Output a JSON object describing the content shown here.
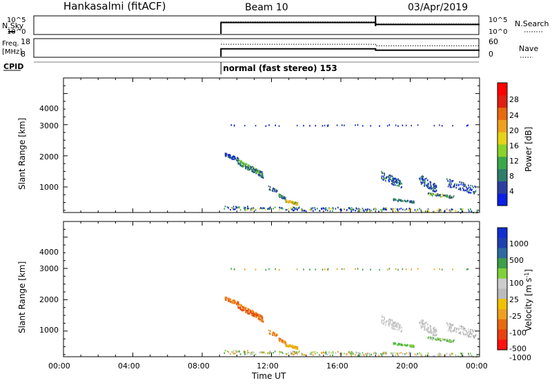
{
  "header": {
    "station": "Hankasalmi (fitACF)",
    "beam": "Beam 10",
    "date": "03/Apr/2019"
  },
  "colors": {
    "power_scale": [
      "#0b1fe6",
      "#2c3fa0",
      "#2e7d6b",
      "#3aa84a",
      "#8bd22a",
      "#e6d21a",
      "#f0a020",
      "#e86a10",
      "#e02010",
      "#ff0000"
    ],
    "velocity_scale": [
      "#ff1010",
      "#e84010",
      "#e86a10",
      "#f0a020",
      "#f0c000",
      "#bbbbbb",
      "#cccccc",
      "#7fd13a",
      "#3e9e4a",
      "#2e6aa0",
      "#2040b0",
      "#1030d0"
    ]
  },
  "chart_data": [
    {
      "type": "line",
      "name": "nsky-nsearch",
      "left_label": "N.Sky",
      "right_label": "N.Search",
      "left_ticks": [
        "10^5",
        "10^0"
      ],
      "right_ticks": [
        "10^5",
        "10^0"
      ],
      "x": [
        "09:05",
        "18:00",
        "18:00",
        "00:00"
      ],
      "y_sky": [
        3.2,
        3.2,
        2.6,
        2.6
      ],
      "y_search": [
        3.4,
        3.4,
        2.8,
        2.8
      ],
      "spike_time": "18:00"
    },
    {
      "type": "line",
      "name": "freq-nave",
      "left_label": "Freq.",
      "left_unit": "[MHz]",
      "right_label": "Nave",
      "left_ticks": [
        "18",
        "8"
      ],
      "right_ticks": [
        "60",
        "0"
      ],
      "freq_x": [
        "09:05",
        "18:00",
        "18:00",
        "00:00"
      ],
      "freq_y": [
        12.5,
        12.5,
        11.6,
        11.6
      ],
      "nave_x": [
        "09:05",
        "18:00",
        "18:00",
        "00:00"
      ],
      "nave_y": [
        44,
        44,
        38,
        38
      ]
    },
    {
      "type": "text",
      "name": "cpid",
      "label": "CPID",
      "value": "normal (fast stereo) 153",
      "start": "09:05"
    },
    {
      "type": "heatmap",
      "name": "power",
      "ylabel": "Slant Range [km]",
      "yticks": [
        "4000",
        "3000",
        "2000",
        "1000"
      ],
      "colorbar_label": "Power [dB]",
      "colorbar_ticks": [
        "28",
        "24",
        "20",
        "16",
        "12",
        "8",
        "4"
      ],
      "ylim": [
        180,
        4500
      ],
      "xlim_hours": [
        0,
        24
      ]
    },
    {
      "type": "heatmap",
      "name": "velocity",
      "ylabel": "Slant Range [km]",
      "yticks": [
        "4000",
        "3000",
        "2000",
        "1000"
      ],
      "colorbar_label": "Velocity [m s",
      "colorbar_unit_sup": "-1",
      "colorbar_unit_close": "]",
      "colorbar_ticks": [
        "1000",
        "500",
        "100",
        "25",
        "-25",
        "-100",
        "-500",
        "-1000"
      ],
      "ylim": [
        180,
        4500
      ],
      "xlim_hours": [
        0,
        24
      ]
    }
  ],
  "time_axis": {
    "ticks": [
      "00:00",
      "04:00",
      "08:00",
      "12:00",
      "16:00",
      "20:00",
      "00:00"
    ],
    "label": "Time UT"
  }
}
